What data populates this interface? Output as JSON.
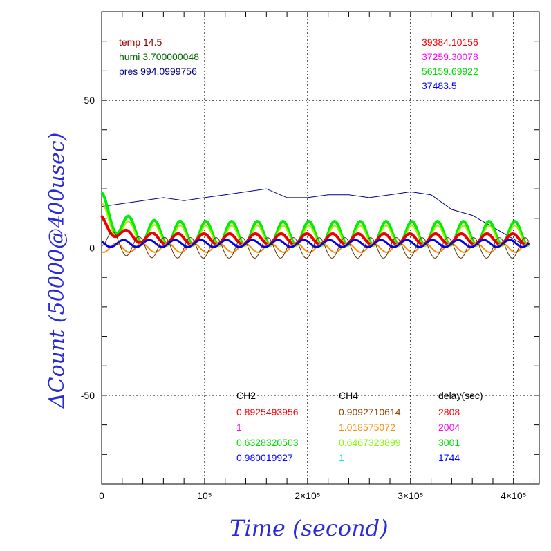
{
  "chart_data": {
    "type": "line",
    "xlabel": "Time (second)",
    "ylabel": "ΔCount (50000@400usec)",
    "xlim": [
      0,
      425000
    ],
    "ylim": [
      -80,
      80
    ],
    "grid": true,
    "x_ticks": [
      {
        "value": 0,
        "label": "0"
      },
      {
        "value": 100000,
        "label": "10⁵"
      },
      {
        "value": 200000,
        "label": "2×10⁵"
      },
      {
        "value": 300000,
        "label": "3×10⁵"
      },
      {
        "value": 400000,
        "label": "4×10⁵"
      }
    ],
    "y_ticks": [
      {
        "value": 50,
        "label": "50"
      },
      {
        "value": 0,
        "label": "0"
      },
      {
        "value": -50,
        "label": "-50"
      }
    ],
    "env_labels": [
      {
        "text": "temp 14.5",
        "color": "#8b0000"
      },
      {
        "text": "humi 3.700000048",
        "color": "#006400"
      },
      {
        "text": "pres 994.0999756",
        "color": "#00007f"
      }
    ],
    "means": [
      {
        "text": "39384.10156",
        "color": "#ff0000"
      },
      {
        "text": "37259.30078",
        "color": "#ff00ff"
      },
      {
        "text": "56159.69922",
        "color": "#00dd00"
      },
      {
        "text": "37483.5",
        "color": "#0000ff"
      }
    ],
    "table": {
      "headers": [
        "CH2",
        "CH4",
        "delay(sec)"
      ],
      "rows": [
        {
          "ch2": "0.8925493956",
          "ch2_color": "#ff0000",
          "ch4": "0.9092710614",
          "ch4_color": "#8b4500",
          "delay": "2808",
          "delay_color": "#ff0000"
        },
        {
          "ch2": "1",
          "ch2_color": "#ff00ff",
          "ch4": "1.018575072",
          "ch4_color": "#ff8c00",
          "delay": "2004",
          "delay_color": "#ff00ff"
        },
        {
          "ch2": "0.6328320503",
          "ch2_color": "#00dd00",
          "ch4": "0.6467323899",
          "ch4_color": "#7fff00",
          "delay": "3001",
          "delay_color": "#00dd00"
        },
        {
          "ch2": "0.980019927",
          "ch2_color": "#0000ff",
          "ch4": "1",
          "ch4_color": "#00eeee",
          "delay": "1744",
          "delay_color": "#0000ff"
        }
      ]
    },
    "series": [
      {
        "color": "#00007f",
        "width": 1,
        "x": [
          0,
          20000,
          40000,
          60000,
          80000,
          100000,
          120000,
          140000,
          160000,
          180000,
          200000,
          220000,
          240000,
          260000,
          280000,
          300000,
          320000,
          340000,
          360000,
          380000,
          400000,
          410000
        ],
        "y": [
          14,
          15,
          16,
          17,
          16,
          17,
          18,
          19,
          20,
          17,
          17,
          18,
          18,
          17,
          18,
          19,
          18,
          13,
          11,
          7,
          3,
          1
        ]
      },
      {
        "color": "#00ee00",
        "width": 4,
        "period": 25000,
        "offset": 5,
        "amp": 4,
        "phase": 20000,
        "decay": 10
      },
      {
        "color": "#aaee00",
        "width": 2,
        "period": 25000,
        "offset": 4,
        "amp": 3.5,
        "phase": 20000,
        "decay": 8
      },
      {
        "color": "#ee0000",
        "width": 4,
        "period": 25000,
        "offset": 3,
        "amp": 1.8,
        "phase": 18000,
        "decay": 6
      },
      {
        "color": "#ff8c00",
        "width": 2,
        "period": 25000,
        "offset": 0,
        "amp": 1.5,
        "phase": 8000,
        "decay": 0
      },
      {
        "color": "#0000ee",
        "width": 3,
        "period": 25000,
        "offset": 1.5,
        "amp": 1.2,
        "phase": 15000,
        "decay": 0
      },
      {
        "color": "#5a3000",
        "width": 1,
        "period": 25000,
        "offset": 0,
        "amp": 3.5,
        "phase": 5000,
        "decay": 4
      }
    ]
  }
}
